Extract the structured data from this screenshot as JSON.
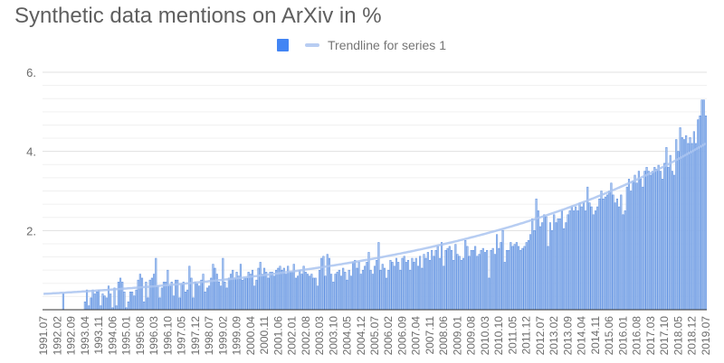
{
  "chart_data": {
    "type": "bar",
    "title": "Synthetic data mentions on ArXiv in %",
    "legend": {
      "placement": "top",
      "series_label": "",
      "trendline_label": "Trendline for series 1"
    },
    "colors": {
      "bar_fill": "#a9c5ef",
      "bar_stroke": "#5a8de0",
      "legend_swatch": "#4285f4",
      "trendline": "#aac4f0"
    },
    "ylim": [
      0,
      6
    ],
    "y_ticks": [
      {
        "value": 2,
        "label": "2."
      },
      {
        "value": 4,
        "label": "4."
      },
      {
        "value": 6,
        "label": "6."
      }
    ],
    "grid": true,
    "x_first": "1991.07",
    "x_last": "2019.07",
    "x_tick_every_months": 7,
    "x_tick_labels": [
      "1991.07",
      "1992.02",
      "1992.09",
      "1993.04",
      "1993.11",
      "1994.06",
      "1995.01",
      "1995.08",
      "1996.03",
      "1996.10",
      "1997.05",
      "1997.12",
      "1998.07",
      "1999.02",
      "1999.09",
      "2000.04",
      "2000.11",
      "2001.06",
      "2002.01",
      "2002.08",
      "2003.03",
      "2003.10",
      "2004.05",
      "2004.12",
      "2005.07",
      "2006.02",
      "2006.09",
      "2007.04",
      "2007.11",
      "2008.06",
      "2009.01",
      "2009.08",
      "2010.03",
      "2010.10",
      "2011.05",
      "2011.12",
      "2012.07",
      "2013.02",
      "2013.09",
      "2014.04",
      "2014.11",
      "2015.06",
      "2016.01",
      "2016.08",
      "2017.03",
      "2017.10",
      "2018.05",
      "2018.12",
      "2019.07"
    ],
    "trendline": {
      "type": "exponential",
      "start_value": 0.4,
      "end_value": 4.2
    },
    "values": [
      0,
      0,
      0,
      0,
      0,
      0,
      0,
      0,
      0,
      0,
      0.4,
      0,
      0,
      0,
      0,
      0,
      0,
      0,
      0,
      0,
      0,
      0.2,
      0.5,
      0.1,
      0.3,
      0.5,
      0.4,
      0.45,
      0.5,
      0.1,
      0.4,
      0.35,
      0.3,
      0.6,
      0.4,
      0.05,
      0.55,
      0.1,
      0.7,
      0.8,
      0.7,
      0.45,
      0.05,
      0.2,
      0.45,
      0.45,
      0.35,
      0.5,
      0.75,
      0.9,
      0.8,
      0.2,
      0.7,
      0.3,
      0.75,
      0.8,
      0.9,
      1.3,
      0.6,
      0.3,
      0.55,
      0.7,
      0.7,
      1.0,
      0.6,
      0.7,
      0.35,
      0.75,
      0.75,
      0.3,
      0.65,
      0.7,
      0.45,
      0.5,
      1.1,
      0.8,
      0.3,
      0.7,
      0.65,
      0.6,
      0.75,
      0.9,
      0.45,
      0.55,
      0.6,
      0.8,
      1.15,
      1.05,
      0.9,
      0.7,
      0.6,
      1.3,
      0.7,
      0.55,
      0.8,
      0.9,
      1.0,
      0.8,
      0.95,
      0.85,
      1.15,
      0.75,
      0.8,
      0.8,
      0.95,
      0.9,
      1.0,
      0.6,
      0.75,
      1.05,
      1.2,
      0.9,
      1.05,
      0.95,
      0.8,
      0.95,
      0.95,
      0.85,
      1.0,
      1.05,
      1.1,
      1.0,
      1.05,
      0.9,
      1.1,
      0.95,
      0.95,
      1.15,
      0.8,
      0.85,
      1.0,
      0.9,
      1.1,
      0.95,
      0.9,
      0.85,
      0.9,
      0.8,
      0.8,
      0.6,
      1.0,
      1.3,
      1.35,
      0.85,
      1.4,
      1.3,
      0.9,
      0.7,
      0.9,
      0.95,
      1.0,
      0.85,
      1.05,
      0.95,
      0.75,
      1.0,
      0.85,
      1.2,
      1.25,
      1.05,
      1.2,
      0.9,
      1.0,
      1.1,
      1.2,
      1.45,
      1.0,
      0.9,
      1.1,
      1.25,
      1.7,
      1.0,
      1.15,
      1.05,
      0.8,
      1.0,
      1.25,
      1.2,
      1.1,
      1.3,
      1.2,
      1.0,
      1.3,
      1.35,
      1.2,
      1.25,
      1.0,
      1.3,
      1.2,
      1.3,
      1.1,
      1.35,
      1.05,
      1.4,
      1.3,
      1.45,
      1.25,
      1.5,
      1.35,
      1.5,
      1.6,
      1.3,
      1.7,
      1.1,
      1.5,
      1.55,
      1.6,
      1.5,
      1.25,
      1.65,
      1.4,
      1.35,
      1.25,
      1.3,
      1.75,
      1.6,
      1.35,
      1.5,
      1.5,
      1.6,
      1.35,
      1.4,
      1.5,
      1.55,
      1.45,
      1.5,
      0.8,
      1.5,
      1.55,
      1.4,
      1.9,
      1.55,
      1.7,
      2.0,
      1.2,
      1.5,
      1.5,
      1.7,
      1.6,
      1.65,
      1.7,
      1.6,
      1.5,
      1.55,
      1.6,
      1.7,
      1.75,
      1.9,
      2.3,
      2.0,
      2.8,
      2.5,
      2.1,
      2.2,
      2.4,
      2.35,
      1.6,
      2.2,
      2.0,
      2.4,
      2.2,
      2.3,
      2.3,
      2.5,
      2.05,
      2.2,
      2.4,
      2.5,
      2.6,
      2.5,
      2.6,
      2.5,
      2.7,
      2.6,
      2.7,
      2.5,
      3.1,
      2.7,
      2.6,
      2.4,
      2.5,
      2.6,
      2.8,
      3.0,
      2.8,
      2.85,
      2.9,
      3.0,
      3.2,
      2.9,
      2.7,
      2.8,
      2.6,
      2.9,
      2.4,
      2.5,
      3.1,
      3.3,
      3.0,
      3.25,
      3.4,
      3.2,
      3.5,
      3.3,
      3.1,
      3.5,
      3.6,
      3.5,
      3.4,
      3.5,
      3.6,
      3.55,
      3.65,
      3.5,
      3.3,
      3.7,
      4.1,
      3.6,
      3.9,
      3.5,
      3.4,
      4.3,
      4.0,
      4.6,
      4.35,
      4.3,
      4.4,
      4.2,
      4.35,
      4.2,
      4.5,
      4.2,
      4.8,
      4.9,
      5.3,
      5.3,
      4.9
    ]
  }
}
